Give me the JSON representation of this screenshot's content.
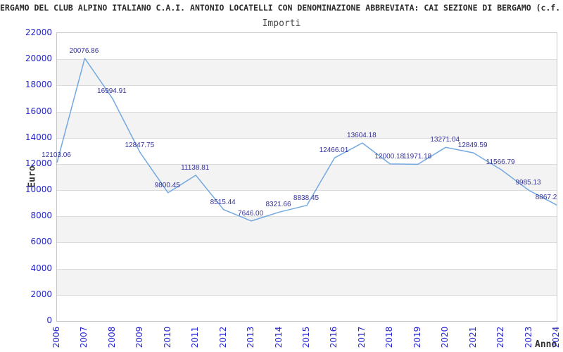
{
  "title": "ERGAMO DEL CLUB ALPINO ITALIANO C.A.I. ANTONIO LOCATELLI CON DENOMINAZIONE ABBREVIATA: CAI SEZIONE DI BERGAMO (c.f.",
  "subtitle": "Importi",
  "y_axis_label": "Euro",
  "x_axis_label": "Anno",
  "colors": {
    "line": "#74a9e0",
    "point_label": "#333399",
    "axis_tick": "#2323d1",
    "band": "#f3f3f3",
    "grid": "#dcdcdc",
    "border": "#c6c6c6",
    "title": "#2b2b2b",
    "subtitle": "#4a4a4a",
    "axis_title": "#333333"
  },
  "chart_data": {
    "type": "line",
    "title": "Importi",
    "xlabel": "Anno",
    "ylabel": "Euro",
    "categories": [
      "2006",
      "2007",
      "2008",
      "2009",
      "2010",
      "2011",
      "2012",
      "2013",
      "2014",
      "2015",
      "2016",
      "2017",
      "2018",
      "2019",
      "2020",
      "2021",
      "2022",
      "2023",
      "2024"
    ],
    "values": [
      12103.06,
      20076.86,
      16994.91,
      12847.75,
      9800.45,
      11138.81,
      8515.44,
      7646.0,
      8321.66,
      8838.45,
      12466.01,
      13604.18,
      12000.18,
      11971.18,
      13271.04,
      12849.59,
      11566.79,
      9985.13,
      8867.2
    ],
    "point_labels": [
      "12103.06",
      "20076.86",
      "16994.91",
      "12847.75",
      "9800.45",
      "11138.81",
      "8515.44",
      "7646.00",
      "8321.66",
      "8838.45",
      "12466.01",
      "13604.18",
      "12000.18",
      "11971.18",
      "13271.04",
      "12849.59",
      "11566.79",
      "9985.13",
      "8867.2"
    ],
    "point_label_dx": [
      0,
      0,
      0,
      0,
      0,
      0,
      0,
      0,
      0,
      0,
      0,
      0,
      0,
      0,
      0,
      0,
      0,
      0,
      -14
    ],
    "ylim": [
      0,
      22000
    ],
    "ytick_step": 2000,
    "grid": "horizontal gridlines with alternating shaded bands",
    "legend": "none"
  }
}
